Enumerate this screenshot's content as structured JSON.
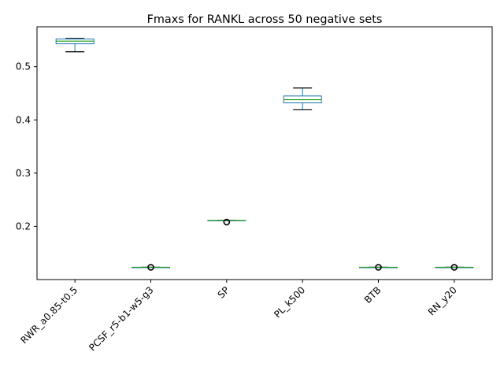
{
  "chart_data": {
    "type": "box",
    "title": "Fmaxs for RANKL across 50 negative sets",
    "xlabel": "",
    "ylabel": "",
    "ylim": [
      0.1,
      0.575
    ],
    "yticks": [
      0.2,
      0.3,
      0.4,
      0.5
    ],
    "ytick_labels": [
      "0.2",
      "0.3",
      "0.4",
      "0.5"
    ],
    "grid": false,
    "legend": "none",
    "categories": [
      "RWR_a0.85-t0.5",
      "PCSF_r5-b1-w5-g3",
      "SP",
      "PL_k500",
      "BTB",
      "RN_y20"
    ],
    "boxes": [
      {
        "category": "RWR_a0.85-t0.5",
        "whisker_low": 0.528,
        "q1": 0.543,
        "median": 0.548,
        "q3": 0.552,
        "whisker_high": 0.553,
        "outliers": []
      },
      {
        "category": "PCSF_r5-b1-w5-g3",
        "whisker_low": 0.123,
        "q1": 0.123,
        "median": 0.123,
        "q3": 0.123,
        "whisker_high": 0.123,
        "outliers": [
          0.123
        ]
      },
      {
        "category": "SP",
        "whisker_low": 0.211,
        "q1": 0.211,
        "median": 0.211,
        "q3": 0.211,
        "whisker_high": 0.211,
        "outliers": [
          0.208
        ]
      },
      {
        "category": "PL_k500",
        "whisker_low": 0.419,
        "q1": 0.432,
        "median": 0.438,
        "q3": 0.445,
        "whisker_high": 0.46,
        "outliers": []
      },
      {
        "category": "BTB",
        "whisker_low": 0.123,
        "q1": 0.123,
        "median": 0.123,
        "q3": 0.123,
        "whisker_high": 0.123,
        "outliers": [
          0.123
        ]
      },
      {
        "category": "RN_y20",
        "whisker_low": 0.123,
        "q1": 0.123,
        "median": 0.123,
        "q3": 0.123,
        "whisker_high": 0.123,
        "outliers": [
          0.123
        ]
      }
    ],
    "colors": {
      "box": "#1f77b4",
      "median": "#2ca02c",
      "whisker": "#000000",
      "axes": "#000000",
      "background": "#ffffff"
    }
  }
}
